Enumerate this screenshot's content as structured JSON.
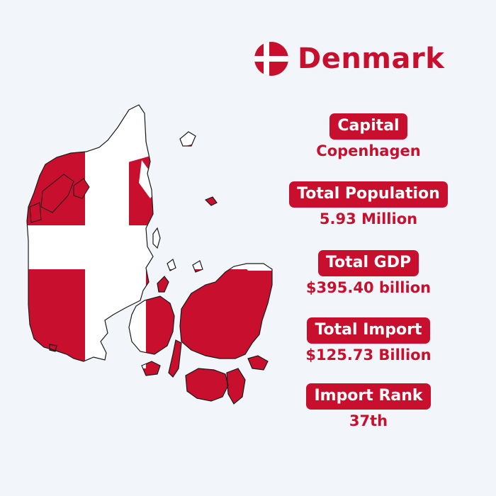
{
  "header": {
    "title": "Denmark",
    "flag_icon": "denmark-flag-icon"
  },
  "facts": [
    {
      "label": "Capital",
      "value": "Copenhagen"
    },
    {
      "label": "Total Population",
      "value": "5.93 Million"
    },
    {
      "label": "Total GDP",
      "value": "$395.40 billion"
    },
    {
      "label": "Total Import",
      "value": "$125.73 Billion"
    },
    {
      "label": "Import Rank",
      "value": "37th"
    }
  ],
  "colors": {
    "flag_red": "#c8102e",
    "flag_white": "#ffffff",
    "background": "#f2f6fa"
  }
}
